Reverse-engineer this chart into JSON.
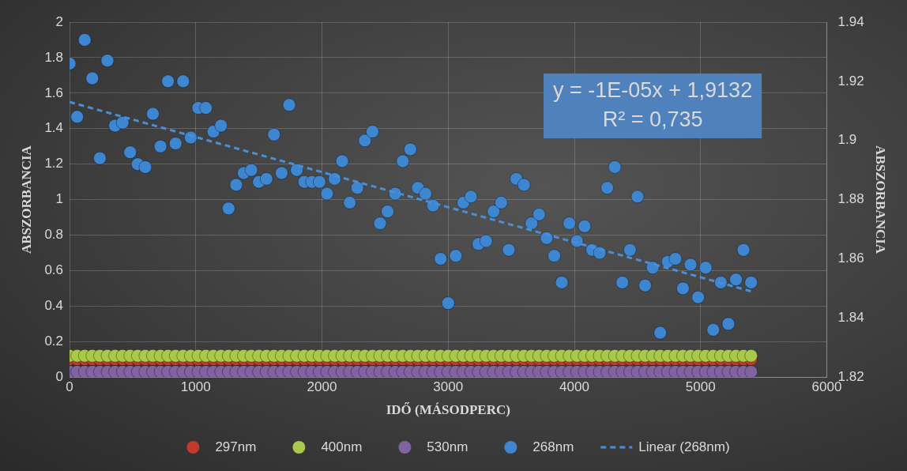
{
  "chart_data": {
    "type": "scatter",
    "xlabel": "IDŐ (MÁSODPERC)",
    "ylabel": "ABSZORBANCIA",
    "y2label": "ABSZORBANCIA",
    "xlim": [
      0,
      6000
    ],
    "xticks": [
      0,
      1000,
      2000,
      3000,
      4000,
      5000,
      6000
    ],
    "ylim": [
      0,
      2
    ],
    "yticks": [
      0,
      0.2,
      0.4,
      0.6,
      0.8,
      1,
      1.2,
      1.4,
      1.6,
      1.8,
      2
    ],
    "y2lim": [
      1.82,
      1.94
    ],
    "y2ticks": [
      1.82,
      1.84,
      1.86,
      1.88,
      1.9,
      1.92,
      1.94
    ],
    "grid": true,
    "legend": "bottom",
    "marker": "circle",
    "annotations": [
      "y = -1E-05x + 1,9132",
      "R² = 0,735"
    ],
    "x": [
      0,
      60,
      120,
      180,
      240,
      300,
      360,
      420,
      480,
      540,
      600,
      660,
      720,
      780,
      840,
      900,
      960,
      1020,
      1080,
      1140,
      1200,
      1260,
      1320,
      1380,
      1440,
      1500,
      1560,
      1620,
      1680,
      1740,
      1800,
      1860,
      1920,
      1980,
      2040,
      2100,
      2160,
      2220,
      2280,
      2340,
      2400,
      2460,
      2520,
      2580,
      2640,
      2700,
      2760,
      2820,
      2880,
      2940,
      3000,
      3060,
      3120,
      3180,
      3240,
      3300,
      3360,
      3420,
      3480,
      3540,
      3600,
      3660,
      3720,
      3780,
      3840,
      3900,
      3960,
      4020,
      4080,
      4140,
      4200,
      4260,
      4320,
      4380,
      4440,
      4500,
      4560,
      4620,
      4680,
      4740,
      4800,
      4860,
      4920,
      4980,
      5040,
      5100,
      5160,
      5220,
      5280,
      5340,
      5400
    ],
    "series": [
      {
        "name": "297nm",
        "color": "#c0392b",
        "values": [
          0.1,
          0.1,
          0.1,
          0.1,
          0.1,
          0.1,
          0.1,
          0.1,
          0.1,
          0.1,
          0.1,
          0.1,
          0.1,
          0.1,
          0.1,
          0.1,
          0.1,
          0.1,
          0.1,
          0.1,
          0.1,
          0.1,
          0.1,
          0.1,
          0.1,
          0.1,
          0.1,
          0.1,
          0.1,
          0.1,
          0.1,
          0.1,
          0.1,
          0.1,
          0.1,
          0.1,
          0.1,
          0.1,
          0.1,
          0.1,
          0.1,
          0.1,
          0.1,
          0.1,
          0.1,
          0.1,
          0.1,
          0.1,
          0.1,
          0.1,
          0.1,
          0.1,
          0.1,
          0.1,
          0.1,
          0.1,
          0.1,
          0.1,
          0.1,
          0.1,
          0.1,
          0.1,
          0.1,
          0.1,
          0.1,
          0.1,
          0.1,
          0.1,
          0.1,
          0.1,
          0.1,
          0.1,
          0.1,
          0.1,
          0.1,
          0.1,
          0.1,
          0.1,
          0.1,
          0.1,
          0.1,
          0.1,
          0.1,
          0.1,
          0.1,
          0.1,
          0.1,
          0.1,
          0.1,
          0.1,
          0.1
        ]
      },
      {
        "name": "400nm",
        "color": "#a8c94a",
        "values": [
          0.12,
          0.12,
          0.12,
          0.12,
          0.12,
          0.12,
          0.12,
          0.12,
          0.12,
          0.12,
          0.12,
          0.12,
          0.12,
          0.12,
          0.12,
          0.12,
          0.12,
          0.12,
          0.12,
          0.12,
          0.12,
          0.12,
          0.12,
          0.12,
          0.12,
          0.12,
          0.12,
          0.12,
          0.12,
          0.12,
          0.12,
          0.12,
          0.12,
          0.12,
          0.12,
          0.12,
          0.12,
          0.12,
          0.12,
          0.12,
          0.12,
          0.12,
          0.12,
          0.12,
          0.12,
          0.12,
          0.12,
          0.12,
          0.12,
          0.12,
          0.12,
          0.12,
          0.12,
          0.12,
          0.12,
          0.12,
          0.12,
          0.12,
          0.12,
          0.12,
          0.12,
          0.12,
          0.12,
          0.12,
          0.12,
          0.12,
          0.12,
          0.12,
          0.12,
          0.12,
          0.12,
          0.12,
          0.12,
          0.12,
          0.12,
          0.12,
          0.12,
          0.12,
          0.12,
          0.12,
          0.12,
          0.12,
          0.12,
          0.12,
          0.12,
          0.12,
          0.12,
          0.12,
          0.12,
          0.12,
          0.12
        ]
      },
      {
        "name": "530nm",
        "color": "#8064a2",
        "values": [
          0.03,
          0.03,
          0.03,
          0.03,
          0.03,
          0.03,
          0.03,
          0.03,
          0.03,
          0.03,
          0.03,
          0.03,
          0.03,
          0.03,
          0.03,
          0.03,
          0.03,
          0.03,
          0.03,
          0.03,
          0.03,
          0.03,
          0.03,
          0.03,
          0.03,
          0.03,
          0.03,
          0.03,
          0.03,
          0.03,
          0.03,
          0.03,
          0.03,
          0.03,
          0.03,
          0.03,
          0.03,
          0.03,
          0.03,
          0.03,
          0.03,
          0.03,
          0.03,
          0.03,
          0.03,
          0.03,
          0.03,
          0.03,
          0.03,
          0.03,
          0.03,
          0.03,
          0.03,
          0.03,
          0.03,
          0.03,
          0.03,
          0.03,
          0.03,
          0.03,
          0.03,
          0.03,
          0.03,
          0.03,
          0.03,
          0.03,
          0.03,
          0.03,
          0.03,
          0.03,
          0.03,
          0.03,
          0.03,
          0.03,
          0.03,
          0.03,
          0.03,
          0.03,
          0.03,
          0.03,
          0.03,
          0.03,
          0.03,
          0.03,
          0.03,
          0.03,
          0.03,
          0.03,
          0.03,
          0.03,
          0.03
        ]
      },
      {
        "name": "268nm",
        "color": "#3f86d0",
        "axis": "y2",
        "values": [
          1.926,
          1.908,
          1.934,
          1.921,
          1.894,
          1.927,
          1.905,
          1.906,
          1.896,
          1.892,
          1.891,
          1.909,
          1.898,
          1.92,
          1.899,
          1.92,
          1.901,
          1.911,
          1.911,
          1.903,
          1.905,
          1.877,
          1.885,
          1.889,
          1.89,
          1.886,
          1.887,
          1.902,
          1.889,
          1.912,
          1.89,
          1.886,
          1.886,
          1.886,
          1.882,
          1.887,
          1.893,
          1.879,
          1.884,
          1.9,
          1.903,
          1.872,
          1.876,
          1.882,
          1.893,
          1.897,
          1.884,
          1.882,
          1.878,
          1.86,
          1.845,
          1.861,
          1.879,
          1.881,
          1.865,
          1.866,
          1.876,
          1.879,
          1.863,
          1.887,
          1.885,
          1.872,
          1.875,
          1.867,
          1.861,
          1.852,
          1.872,
          1.866,
          1.871,
          1.863,
          1.862,
          1.884,
          1.891,
          1.852,
          1.863,
          1.881,
          1.851,
          1.857,
          1.835,
          1.859,
          1.86,
          1.85,
          1.858,
          1.847,
          1.857,
          1.836,
          1.852,
          1.838,
          1.853,
          1.863,
          1.852
        ]
      },
      {
        "name": "Linear (268nm)",
        "type": "line",
        "color": "#4a8fd6",
        "axis": "y2",
        "marker": "none",
        "line_style": "dashed",
        "x": [
          0,
          5400
        ],
        "values": [
          1.913,
          1.849
        ]
      }
    ]
  }
}
